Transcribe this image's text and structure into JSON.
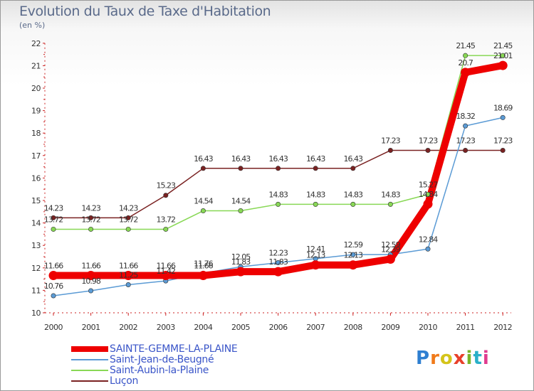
{
  "header": {
    "title": "Evolution du Taux de Taxe d'Habitation",
    "subtitle": "(en %)"
  },
  "brand": {
    "logo_text": "Proxiti",
    "letter_colors": [
      "#2e7fd1",
      "#f07a1a",
      "#d4c41a",
      "#e8402a",
      "#7ab52a",
      "#2ab0c8",
      "#e03b8f"
    ]
  },
  "chart_data": {
    "type": "line",
    "title": "Evolution du Taux de Taxe d'Habitation",
    "subtitle": "(en %)",
    "xlabel": "",
    "ylabel": "",
    "ylim": [
      10,
      22
    ],
    "y_ticks": [
      "10",
      "11",
      "12",
      "13",
      "14",
      "15",
      "16",
      "17",
      "18",
      "19",
      "20",
      "21",
      "22"
    ],
    "categories": [
      "2000",
      "2001",
      "2002",
      "2003",
      "2004",
      "2005",
      "2006",
      "2007",
      "2008",
      "2009",
      "2010",
      "2011",
      "2012"
    ],
    "legend_position": "bottom-left",
    "grid": false,
    "series": [
      {
        "name": "Luçon",
        "color": "#7a2222",
        "values": [
          14.23,
          14.23,
          14.23,
          15.23,
          16.43,
          16.43,
          16.43,
          16.43,
          16.43,
          17.23,
          17.23,
          17.23,
          17.23
        ],
        "labels": [
          "14.23",
          "14.23",
          "14.23",
          "15.23",
          "16.43",
          "16.43",
          "16.43",
          "16.43",
          "16.43",
          "17.23",
          "17.23",
          "17.23",
          "17.23"
        ]
      },
      {
        "name": "Saint-Aubin-la-Plaine",
        "color": "#88d855",
        "values": [
          13.72,
          13.72,
          13.72,
          13.72,
          14.54,
          14.54,
          14.83,
          14.83,
          14.83,
          14.83,
          15.27,
          21.45,
          21.45
        ],
        "labels": [
          "13.72",
          "13.72",
          "13.72",
          "13.72",
          "14.54",
          "14.54",
          "14.83",
          "14.83",
          "14.83",
          "14.83",
          "15.27",
          "21.45",
          "21.45"
        ]
      },
      {
        "name": "Saint-Jean-de-Beugné",
        "color": "#5b9bd5",
        "values": [
          10.76,
          10.98,
          11.25,
          11.42,
          11.76,
          12.05,
          12.23,
          12.41,
          12.59,
          12.59,
          12.84,
          18.32,
          18.69
        ],
        "labels": [
          "10.76",
          "10.98",
          "11.25",
          "11.42",
          "11.76",
          "12.05",
          "12.23",
          "12.41",
          "12.59",
          "12.59",
          "12.84",
          "18.32",
          "18.69"
        ]
      },
      {
        "name": "SAINTE-GEMME-LA-PLAINE",
        "color": "#ee0000",
        "values": [
          11.66,
          11.66,
          11.66,
          11.66,
          11.66,
          11.83,
          11.83,
          12.13,
          12.13,
          12.39,
          14.84,
          20.7,
          21.01
        ],
        "labels": [
          "11.66",
          "11.66",
          "11.66",
          "11.66",
          "11.66",
          "11.83",
          "11.83",
          "12.13",
          "12.13",
          "12.39",
          "14.84",
          "20.7",
          "21.01"
        ]
      }
    ]
  },
  "legend": {
    "items": [
      {
        "label": "SAINTE-GEMME-LA-PLAINE",
        "color": "#ee0000",
        "thick": true
      },
      {
        "label": "Saint-Jean-de-Beugné",
        "color": "#5b9bd5",
        "thick": false
      },
      {
        "label": "Saint-Aubin-la-Plaine",
        "color": "#88d855",
        "thick": false
      },
      {
        "label": "Luçon",
        "color": "#7a2222",
        "thick": false
      }
    ]
  }
}
